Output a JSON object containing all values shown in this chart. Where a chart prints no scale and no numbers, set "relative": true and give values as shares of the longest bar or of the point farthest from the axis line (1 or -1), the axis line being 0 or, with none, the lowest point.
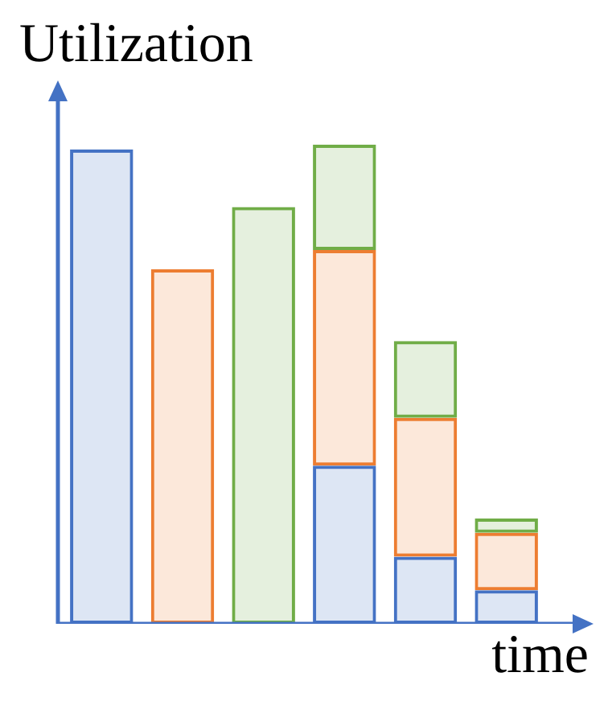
{
  "chart_data": {
    "type": "bar",
    "stacked": true,
    "relative": true,
    "ylabel": "Utilization",
    "xlabel": "time",
    "tick_labels": false,
    "legend": false,
    "categories": [
      null,
      null,
      null,
      null,
      null,
      null
    ],
    "series": [
      {
        "color": "#4472c4",
        "values": [
          0.99,
          null,
          null,
          0.33,
          0.14,
          0.07
        ]
      },
      {
        "color": "#ed7d31",
        "values": [
          null,
          0.74,
          null,
          0.45,
          0.29,
          0.12
        ]
      },
      {
        "color": "#70ad47",
        "values": [
          null,
          null,
          0.87,
          0.22,
          0.16,
          0.03
        ]
      }
    ]
  }
}
